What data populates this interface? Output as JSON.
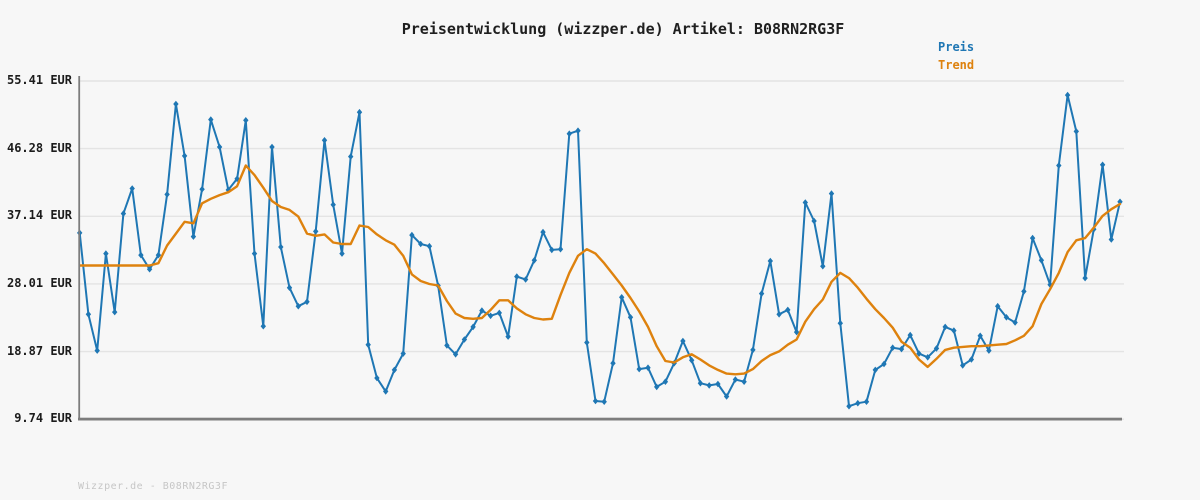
{
  "page": {
    "title": "Preisentwicklung (wizzper.de) Artikel: B08RN2RG3F",
    "footer": "Wizzper.de - B08RN2RG3F"
  },
  "legend": {
    "position": "top-right",
    "items": [
      {
        "label": "Preis",
        "color": "#1f77b4"
      },
      {
        "label": "Trend",
        "color": "#de820e"
      }
    ]
  },
  "y_axis": {
    "unit": "EUR",
    "ticks": [
      {
        "label": "55.41 EUR",
        "value": 55.41
      },
      {
        "label": "46.28 EUR",
        "value": 46.28
      },
      {
        "label": "37.14 EUR",
        "value": 37.14
      },
      {
        "label": "28.01 EUR",
        "value": 28.01
      },
      {
        "label": "18.87 EUR",
        "value": 18.87
      },
      {
        "label": "9.74 EUR",
        "value": 9.74
      }
    ]
  },
  "chart_data": {
    "type": "line",
    "title": "Preisentwicklung (wizzper.de) Artikel: B08RN2RG3F",
    "xlabel": "",
    "ylabel": "EUR",
    "ylim": [
      9.74,
      55.41
    ],
    "grid": "horizontal",
    "x_tick_labels": "none",
    "num_points": 120,
    "legend_position": "top-right",
    "series": [
      {
        "name": "Preis",
        "color": "#1f77b4",
        "marker": "diamond",
        "values": [
          34.9,
          23.9,
          19.0,
          32.1,
          24.2,
          37.5,
          40.9,
          31.9,
          30.0,
          31.9,
          40.1,
          52.3,
          45.3,
          34.4,
          40.8,
          50.2,
          46.5,
          40.7,
          42.2,
          50.1,
          32.1,
          22.3,
          46.5,
          33.0,
          27.5,
          25.0,
          25.6,
          35.1,
          47.4,
          38.7,
          32.1,
          45.2,
          51.2,
          19.8,
          15.3,
          13.5,
          16.4,
          18.6,
          34.6,
          33.4,
          33.1,
          27.8,
          19.7,
          18.5,
          20.5,
          22.2,
          24.4,
          23.7,
          24.1,
          20.9,
          29.0,
          28.6,
          31.2,
          35.0,
          32.6,
          32.7,
          48.3,
          48.7,
          20.1,
          12.2,
          12.1,
          17.3,
          26.2,
          23.5,
          16.5,
          16.7,
          14.1,
          14.8,
          17.3,
          20.3,
          17.7,
          14.6,
          14.3,
          14.5,
          12.8,
          15.1,
          14.8,
          19.1,
          26.7,
          31.1,
          23.9,
          24.5,
          21.5,
          39.0,
          36.5,
          30.4,
          40.2,
          22.7,
          11.5,
          11.9,
          12.1,
          16.4,
          17.2,
          19.4,
          19.2,
          21.1,
          18.6,
          18.1,
          19.3,
          22.2,
          21.7,
          17.0,
          17.8,
          21.0,
          19.0,
          25.0,
          23.5,
          22.8,
          27.0,
          34.2,
          31.2,
          27.9,
          44.0,
          53.5,
          48.6,
          28.8,
          35.4,
          44.1,
          34.0,
          39.1
        ]
      },
      {
        "name": "Trend",
        "color": "#de820e",
        "marker": "none",
        "values": [
          30.5,
          30.5,
          30.5,
          30.5,
          30.5,
          30.5,
          30.5,
          30.5,
          30.5,
          30.8,
          33.2,
          34.8,
          36.4,
          36.2,
          38.9,
          39.5,
          40.0,
          40.4,
          41.2,
          44.0,
          42.7,
          41.0,
          39.2,
          38.4,
          38.0,
          37.1,
          34.8,
          34.5,
          34.7,
          33.6,
          33.4,
          33.4,
          35.9,
          35.7,
          34.7,
          33.9,
          33.3,
          31.8,
          29.3,
          28.4,
          28.0,
          27.8,
          25.7,
          24.0,
          23.4,
          23.3,
          23.4,
          24.5,
          25.8,
          25.8,
          24.7,
          23.9,
          23.4,
          23.2,
          23.3,
          26.5,
          29.5,
          31.8,
          32.7,
          32.1,
          30.8,
          29.3,
          27.8,
          26.1,
          24.3,
          22.2,
          19.6,
          17.6,
          17.4,
          18.1,
          18.5,
          17.8,
          17.0,
          16.4,
          15.9,
          15.8,
          15.9,
          16.5,
          17.6,
          18.4,
          18.9,
          19.8,
          20.5,
          22.9,
          24.6,
          25.9,
          28.3,
          29.5,
          28.8,
          27.5,
          26.0,
          24.6,
          23.4,
          22.1,
          20.2,
          19.4,
          17.8,
          16.8,
          17.9,
          19.1,
          19.4,
          19.5,
          19.6,
          19.6,
          19.7,
          19.8,
          19.9,
          20.4,
          21.0,
          22.3,
          25.3,
          27.3,
          29.5,
          32.3,
          33.9,
          34.2,
          35.6,
          37.2,
          38.1,
          38.8
        ]
      }
    ]
  }
}
